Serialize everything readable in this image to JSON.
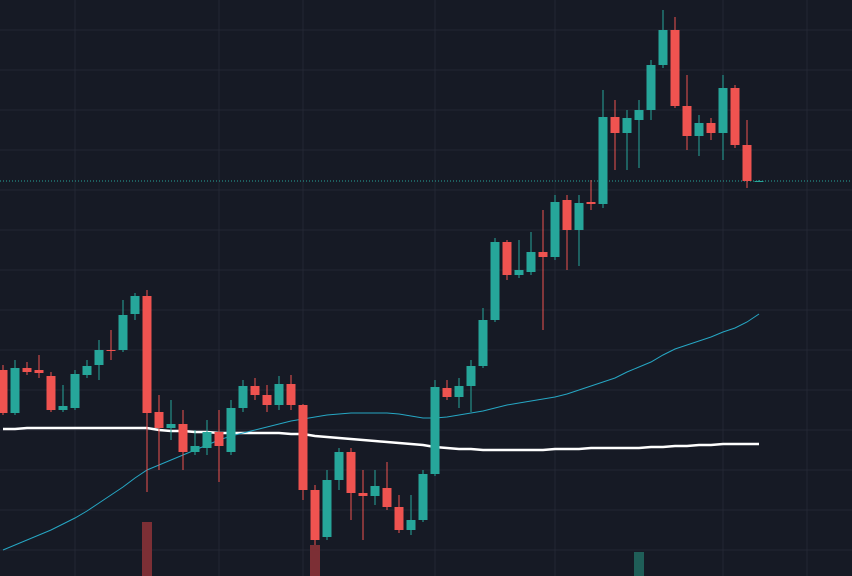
{
  "chart_data": {
    "type": "candlestick",
    "x": [
      0,
      1,
      2,
      3,
      4,
      5,
      6,
      7,
      8,
      9,
      10,
      11,
      12,
      13,
      14,
      15,
      16,
      17,
      18,
      19,
      20,
      21,
      22,
      23,
      24,
      25,
      26,
      27,
      28,
      29,
      30,
      31,
      32,
      33,
      34,
      35,
      36,
      37,
      38,
      39,
      40,
      41,
      42,
      43,
      44,
      45,
      46,
      47,
      48,
      49,
      50,
      51,
      52,
      53,
      54,
      55,
      56,
      57,
      58,
      59,
      60,
      61,
      62,
      63
    ],
    "open": [
      206,
      163,
      208,
      206,
      200,
      166,
      168,
      201,
      211,
      226,
      226,
      262,
      280,
      164,
      148,
      152,
      124,
      128,
      144,
      124,
      168,
      190,
      181,
      171,
      192,
      171,
      86,
      39,
      96,
      124,
      83,
      80,
      88,
      69,
      46,
      56,
      102,
      188,
      179,
      190,
      210,
      256,
      334,
      301,
      304,
      324,
      319,
      376,
      346,
      374,
      372,
      459,
      443,
      456,
      466,
      511,
      546,
      470,
      440,
      453,
      443,
      488,
      431,
      395
    ],
    "high": [
      211,
      216,
      214,
      221,
      204,
      191,
      206,
      216,
      236,
      246,
      276,
      283,
      286,
      181,
      176,
      166,
      146,
      156,
      166,
      176,
      196,
      198,
      191,
      200,
      201,
      172,
      91,
      106,
      128,
      128,
      106,
      106,
      114,
      81,
      81,
      106,
      196,
      196,
      198,
      216,
      268,
      338,
      336,
      336,
      344,
      366,
      381,
      381,
      381,
      396,
      486,
      476,
      466,
      476,
      516,
      566,
      559,
      501,
      461,
      458,
      501,
      491,
      456,
      396
    ],
    "low": [
      161,
      161,
      201,
      198,
      164,
      164,
      166,
      198,
      196,
      216,
      224,
      256,
      84,
      106,
      136,
      106,
      121,
      121,
      94,
      121,
      164,
      176,
      164,
      166,
      166,
      76,
      31,
      36,
      86,
      56,
      36,
      71,
      66,
      43,
      41,
      54,
      100,
      176,
      168,
      164,
      208,
      254,
      296,
      298,
      301,
      246,
      316,
      306,
      310,
      366,
      368,
      406,
      406,
      408,
      456,
      508,
      468,
      426,
      420,
      436,
      416,
      428,
      388,
      394
    ],
    "close": [
      163,
      208,
      204,
      203,
      166,
      170,
      202,
      210,
      226,
      225,
      261,
      280,
      163,
      148,
      152,
      124,
      130,
      144,
      130,
      168,
      190,
      181,
      171,
      192,
      171,
      86,
      36,
      96,
      124,
      83,
      80,
      90,
      69,
      46,
      56,
      102,
      189,
      179,
      190,
      210,
      256,
      334,
      301,
      306,
      324,
      319,
      374,
      346,
      373,
      372,
      459,
      443,
      458,
      466,
      511,
      546,
      470,
      440,
      453,
      443,
      488,
      431,
      395,
      395
    ],
    "up_color": "#26a69a",
    "down_color": "#ef5350",
    "series": [
      {
        "color": "#ffffff",
        "values": [
          147,
          147,
          148,
          148,
          148,
          148,
          148,
          148,
          148,
          148,
          148,
          148,
          148,
          146,
          145,
          145,
          144,
          144,
          143,
          143,
          143,
          143,
          143,
          143,
          142,
          142,
          140,
          139,
          138,
          137,
          136,
          135,
          134,
          133,
          132,
          131,
          129,
          128,
          127,
          127,
          126,
          126,
          126,
          126,
          126,
          126,
          127,
          127,
          127,
          128,
          128,
          128,
          128,
          128,
          129,
          129,
          130,
          130,
          131,
          131,
          132,
          132,
          132,
          132
        ]
      },
      {
        "color": "#26a7c4",
        "values": [
          26,
          31,
          36,
          41,
          46,
          52,
          58,
          65,
          73,
          81,
          89,
          98,
          106,
          111,
          116,
          121,
          126,
          131,
          136,
          140,
          143,
          146,
          149,
          152,
          155,
          157,
          159,
          161,
          162,
          163,
          163,
          163,
          163,
          162,
          160,
          158,
          158,
          159,
          161,
          163,
          165,
          168,
          171,
          173,
          175,
          177,
          179,
          182,
          186,
          190,
          194,
          198,
          204,
          209,
          214,
          221,
          227,
          231,
          235,
          239,
          244,
          248,
          254,
          262
        ]
      }
    ],
    "volume": {
      "values": [
        null,
        null,
        null,
        null,
        null,
        null,
        null,
        null,
        null,
        null,
        null,
        null,
        54,
        null,
        null,
        null,
        null,
        null,
        null,
        null,
        null,
        null,
        null,
        null,
        null,
        null,
        31,
        null,
        null,
        null,
        null,
        null,
        null,
        null,
        null,
        null,
        null,
        null,
        null,
        null,
        null,
        null,
        null,
        null,
        null,
        null,
        null,
        null,
        null,
        null,
        null,
        null,
        null,
        24,
        null,
        null,
        null,
        null,
        null,
        null,
        null,
        null,
        null,
        null
      ],
      "up_color": "#1f5e58",
      "down_color": "#7c2f35",
      "vlim": [
        0,
        576
      ]
    },
    "last_price": 395,
    "xlim": [
      -0.25,
      70.75
    ],
    "ylim": [
      0,
      576
    ],
    "xticks": [
      6,
      18,
      25,
      36,
      46,
      60,
      67
    ],
    "yticks": [
      26,
      66,
      106,
      146,
      186,
      226,
      266,
      306,
      346,
      386,
      426,
      466,
      506,
      546
    ],
    "grid": true
  }
}
